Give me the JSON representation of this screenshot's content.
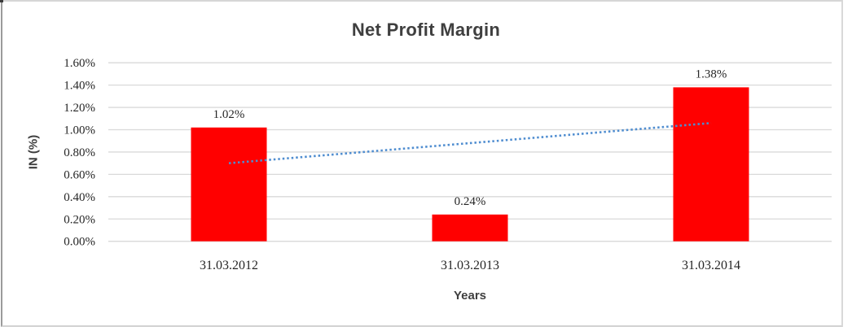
{
  "chart_data": {
    "type": "bar",
    "title": "Net Profit Margin",
    "xlabel": "Years",
    "ylabel": "IN (%)",
    "categories": [
      "31.03.2012",
      "31.03.2013",
      "31.03.2014"
    ],
    "values": [
      1.02,
      0.24,
      1.38
    ],
    "data_labels": [
      "1.02%",
      "0.24%",
      "1.38%"
    ],
    "y_ticks": [
      {
        "value": 0.0,
        "label": "0.00%"
      },
      {
        "value": 0.2,
        "label": "0.20%"
      },
      {
        "value": 0.4,
        "label": "0.40%"
      },
      {
        "value": 0.6,
        "label": "0.60%"
      },
      {
        "value": 0.8,
        "label": "0.80%"
      },
      {
        "value": 1.0,
        "label": "1.00%"
      },
      {
        "value": 1.2,
        "label": "1.20%"
      },
      {
        "value": 1.4,
        "label": "1.40%"
      },
      {
        "value": 1.6,
        "label": "1.60%"
      }
    ],
    "ylim": [
      0,
      1.6
    ],
    "grid": true,
    "legend": false,
    "bar_color": "#ff0000",
    "gridline_color": "#d9d9d9",
    "label_color": "#262626",
    "title_color": "#3f3f3f",
    "trendline": {
      "type": "linear",
      "style": "dotted",
      "color": "#4f8dd0",
      "start_value": 0.7,
      "end_value": 1.06
    }
  }
}
